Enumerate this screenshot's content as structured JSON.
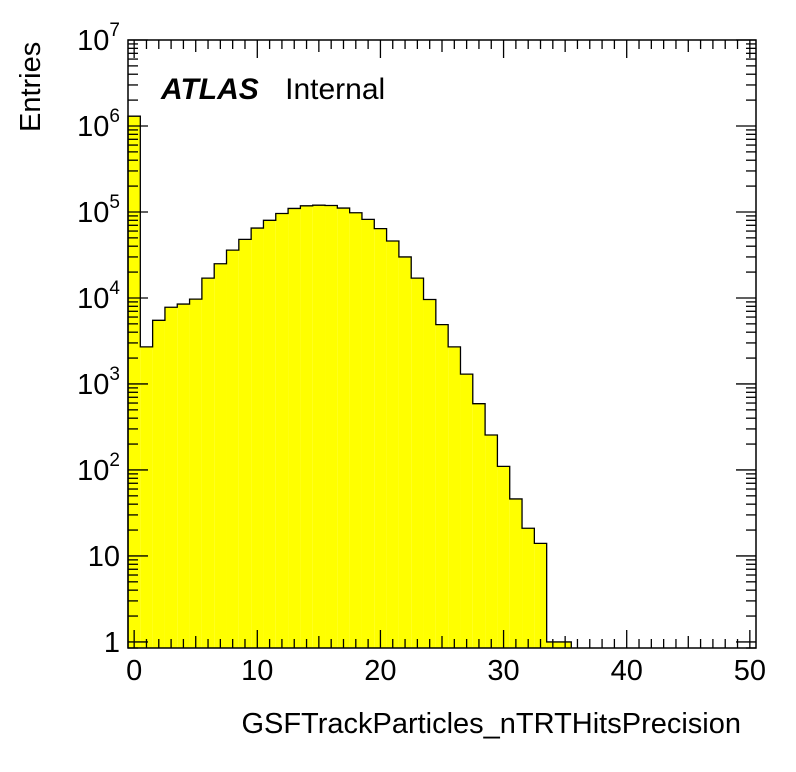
{
  "chart_data": {
    "type": "bar",
    "title": "",
    "xlabel": "GSFTrackParticles_nTRTHitsPrecision",
    "ylabel": "Entries",
    "xlim": [
      -0.5,
      50.5
    ],
    "ylim": [
      0.85,
      10000000
    ],
    "yscale": "log",
    "grid": false,
    "fill_color": "#ffff00",
    "line_color": "#000000",
    "annotation": {
      "bold_italic": "ATLAS",
      "normal": "Internal"
    },
    "x_ticks": [
      {
        "value": 0,
        "label": "0"
      },
      {
        "value": 10,
        "label": "10"
      },
      {
        "value": 20,
        "label": "20"
      },
      {
        "value": 30,
        "label": "30"
      },
      {
        "value": 40,
        "label": "40"
      },
      {
        "value": 50,
        "label": "50"
      }
    ],
    "y_ticks": [
      {
        "value": 1,
        "base": "1",
        "exp": ""
      },
      {
        "value": 10,
        "base": "10",
        "exp": ""
      },
      {
        "value": 100,
        "base": "10",
        "exp": "2"
      },
      {
        "value": 1000,
        "base": "10",
        "exp": "3"
      },
      {
        "value": 10000,
        "base": "10",
        "exp": "4"
      },
      {
        "value": 100000,
        "base": "10",
        "exp": "5"
      },
      {
        "value": 1000000,
        "base": "10",
        "exp": "6"
      },
      {
        "value": 10000000,
        "base": "10",
        "exp": "7"
      }
    ],
    "bin_width": 1,
    "bins": [
      {
        "x": 0,
        "value": 1300000
      },
      {
        "x": 1,
        "value": 2700
      },
      {
        "x": 2,
        "value": 5500
      },
      {
        "x": 3,
        "value": 7800
      },
      {
        "x": 4,
        "value": 8500
      },
      {
        "x": 5,
        "value": 9700
      },
      {
        "x": 6,
        "value": 17000
      },
      {
        "x": 7,
        "value": 25000
      },
      {
        "x": 8,
        "value": 36000
      },
      {
        "x": 9,
        "value": 48000
      },
      {
        "x": 10,
        "value": 65000
      },
      {
        "x": 11,
        "value": 80000
      },
      {
        "x": 12,
        "value": 96000
      },
      {
        "x": 13,
        "value": 110000
      },
      {
        "x": 14,
        "value": 118000
      },
      {
        "x": 15,
        "value": 120000
      },
      {
        "x": 16,
        "value": 119000
      },
      {
        "x": 17,
        "value": 111000
      },
      {
        "x": 18,
        "value": 98000
      },
      {
        "x": 19,
        "value": 82000
      },
      {
        "x": 20,
        "value": 64000
      },
      {
        "x": 21,
        "value": 46000
      },
      {
        "x": 22,
        "value": 30000
      },
      {
        "x": 23,
        "value": 17000
      },
      {
        "x": 24,
        "value": 9600
      },
      {
        "x": 25,
        "value": 4900
      },
      {
        "x": 26,
        "value": 2700
      },
      {
        "x": 27,
        "value": 1300
      },
      {
        "x": 28,
        "value": 590
      },
      {
        "x": 29,
        "value": 255
      },
      {
        "x": 30,
        "value": 110
      },
      {
        "x": 31,
        "value": 46
      },
      {
        "x": 32,
        "value": 21
      },
      {
        "x": 33,
        "value": 14
      },
      {
        "x": 34,
        "value": 1
      },
      {
        "x": 35,
        "value": 1
      }
    ]
  }
}
